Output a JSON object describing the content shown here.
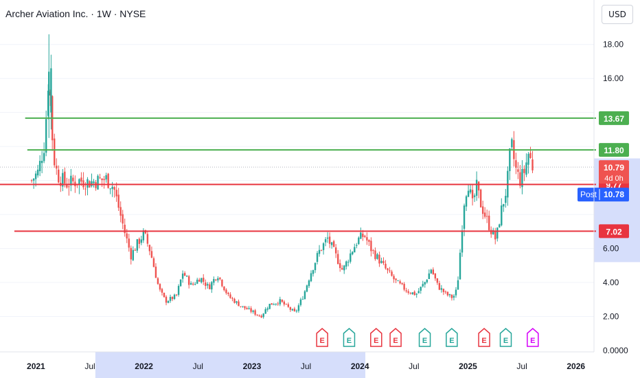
{
  "header": {
    "title": "Archer Aviation Inc. · 1W · NYSE",
    "currency": "USD"
  },
  "colors": {
    "up": "#26a69a",
    "down": "#ef5350",
    "green_level": "#4caf50",
    "red_level": "#e8343f",
    "highlight": "#d6defb",
    "post_badge": "#2962ff",
    "earnings_red": "#e8343f",
    "earnings_green": "#26a69a",
    "earnings_purple": "#d500f9"
  },
  "chart_data": {
    "type": "candlestick",
    "ylim": [
      0,
      19
    ],
    "yticks": [
      "0.0000",
      "2.00",
      "4.00",
      "6.00",
      "16.00",
      "18.00"
    ],
    "xlim": [
      2020.667,
      2026.167
    ],
    "xticks": [
      {
        "label": "2021",
        "t": 2021.0,
        "bold": true
      },
      {
        "label": "Jul",
        "t": 2021.5,
        "bold": false
      },
      {
        "label": "2022",
        "t": 2022.0,
        "bold": true
      },
      {
        "label": "Jul",
        "t": 2022.5,
        "bold": false
      },
      {
        "label": "2023",
        "t": 2023.0,
        "bold": true
      },
      {
        "label": "Jul",
        "t": 2023.5,
        "bold": false
      },
      {
        "label": "2024",
        "t": 2024.0,
        "bold": true
      },
      {
        "label": "Jul",
        "t": 2024.5,
        "bold": false
      },
      {
        "label": "2025",
        "t": 2025.0,
        "bold": true
      },
      {
        "label": "Jul",
        "t": 2025.5,
        "bold": false
      },
      {
        "label": "2026",
        "t": 2026.0,
        "bold": true
      }
    ],
    "x_highlight": [
      2021.55,
      2024.05
    ],
    "y_highlight": [
      5.2,
      11.3
    ],
    "current_price": 10.79,
    "levels": [
      {
        "value": 13.67,
        "label": "13.67",
        "color": "green",
        "start": 2020.9
      },
      {
        "value": 11.8,
        "label": "11.80",
        "color": "green",
        "start": 2020.92
      },
      {
        "value": 9.77,
        "label": "9.77",
        "color": "red",
        "start": 2020.65
      },
      {
        "value": 7.02,
        "label": "7.02",
        "color": "red",
        "start": 2020.8
      }
    ],
    "price_badge": {
      "value": 10.79,
      "label": "10.79",
      "sublabel": "4d 0h"
    },
    "post_badge": {
      "value": 10.78,
      "tag": "Post",
      "label": "10.78"
    },
    "earnings": [
      {
        "t": 2023.65,
        "kind": "E",
        "type": "red"
      },
      {
        "t": 2023.9,
        "kind": "E",
        "type": "green"
      },
      {
        "t": 2024.15,
        "kind": "E",
        "type": "red"
      },
      {
        "t": 2024.33,
        "kind": "E",
        "type": "red"
      },
      {
        "t": 2024.6,
        "kind": "E",
        "type": "green"
      },
      {
        "t": 2024.85,
        "kind": "E",
        "type": "green"
      },
      {
        "t": 2025.15,
        "kind": "E",
        "type": "red"
      },
      {
        "t": 2025.35,
        "kind": "E",
        "type": "green"
      },
      {
        "t": 2025.6,
        "kind": "E",
        "type": "purple"
      }
    ],
    "anchors": [
      [
        2020.96,
        10.0
      ],
      [
        2021.02,
        10.5
      ],
      [
        2021.08,
        12.2
      ],
      [
        2021.12,
        16.5
      ],
      [
        2021.16,
        11.5
      ],
      [
        2021.2,
        10.3
      ],
      [
        2021.28,
        9.8
      ],
      [
        2021.4,
        10.0
      ],
      [
        2021.5,
        9.9
      ],
      [
        2021.65,
        10.1
      ],
      [
        2021.72,
        9.6
      ],
      [
        2021.82,
        7.0
      ],
      [
        2021.88,
        5.6
      ],
      [
        2021.94,
        6.3
      ],
      [
        2022.0,
        6.9
      ],
      [
        2022.06,
        5.8
      ],
      [
        2022.14,
        3.6
      ],
      [
        2022.2,
        2.9
      ],
      [
        2022.3,
        3.2
      ],
      [
        2022.36,
        4.6
      ],
      [
        2022.44,
        3.8
      ],
      [
        2022.52,
        4.3
      ],
      [
        2022.6,
        3.7
      ],
      [
        2022.68,
        4.5
      ],
      [
        2022.78,
        3.2
      ],
      [
        2022.9,
        2.6
      ],
      [
        2023.0,
        2.3
      ],
      [
        2023.08,
        2.0
      ],
      [
        2023.16,
        2.7
      ],
      [
        2023.26,
        2.9
      ],
      [
        2023.34,
        2.5
      ],
      [
        2023.4,
        2.2
      ],
      [
        2023.48,
        3.3
      ],
      [
        2023.54,
        4.5
      ],
      [
        2023.62,
        5.8
      ],
      [
        2023.7,
        6.6
      ],
      [
        2023.76,
        5.8
      ],
      [
        2023.84,
        4.7
      ],
      [
        2023.92,
        5.8
      ],
      [
        2023.98,
        6.5
      ],
      [
        2024.04,
        6.8
      ],
      [
        2024.1,
        6.0
      ],
      [
        2024.18,
        5.3
      ],
      [
        2024.26,
        4.6
      ],
      [
        2024.34,
        4.0
      ],
      [
        2024.44,
        3.5
      ],
      [
        2024.52,
        3.3
      ],
      [
        2024.6,
        4.0
      ],
      [
        2024.66,
        4.8
      ],
      [
        2024.72,
        3.8
      ],
      [
        2024.8,
        3.3
      ],
      [
        2024.86,
        3.1
      ],
      [
        2024.9,
        3.6
      ],
      [
        2024.93,
        6.0
      ],
      [
        2024.96,
        8.6
      ],
      [
        2025.0,
        10.0
      ],
      [
        2025.04,
        8.5
      ],
      [
        2025.08,
        9.6
      ],
      [
        2025.12,
        8.6
      ],
      [
        2025.18,
        7.6
      ],
      [
        2025.22,
        7.0
      ],
      [
        2025.26,
        6.5
      ],
      [
        2025.3,
        8.0
      ],
      [
        2025.36,
        9.6
      ],
      [
        2025.4,
        12.2
      ],
      [
        2025.44,
        10.7
      ],
      [
        2025.48,
        10.0
      ],
      [
        2025.52,
        10.5
      ],
      [
        2025.56,
        11.6
      ],
      [
        2025.6,
        10.79
      ]
    ]
  },
  "axis_labels": {
    "time_label_prefix": "",
    "price_label_prefix": ""
  }
}
